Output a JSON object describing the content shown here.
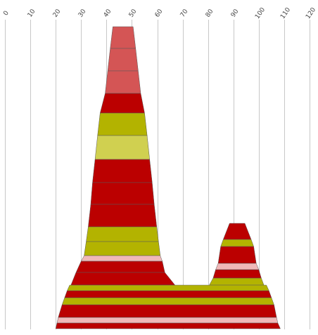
{
  "colors": {
    "red": "#bb0000",
    "red_light": "#d45555",
    "olive": "#b3b300",
    "olive_light": "#d0d050",
    "pink": "#f0b8b8",
    "grid": "#c8c8c8",
    "outline": "#5a5a5a"
  },
  "chart_data": {
    "type": "area",
    "title": "",
    "xlabel": "",
    "ylabel": "",
    "x_axis": {
      "position": "top",
      "min": 0,
      "max": 120,
      "ticks": [
        0,
        10,
        20,
        30,
        40,
        50,
        60,
        70,
        80,
        90,
        100,
        110,
        120
      ]
    },
    "y_axis": {
      "shown": false,
      "direction": "top-to-bottom"
    },
    "grid": "vertical",
    "description_in_data_units": "Stacked horizontal bands; each band spans from y_top to y_bottom (row index from top) with its horizontal extent left..right at top and bottom edges (x data units).",
    "bands": [
      {
        "y0": 0,
        "y1": 31,
        "l0": 42.5,
        "r0": 50.5,
        "l1": 41.5,
        "r1": 51.5,
        "color": "red_light"
      },
      {
        "y0": 31,
        "y1": 63,
        "l0": 41.5,
        "r0": 51.5,
        "l1": 40.5,
        "r1": 52.5,
        "color": "red_light"
      },
      {
        "y0": 63,
        "y1": 95,
        "l0": 40.5,
        "r0": 52.5,
        "l1": 39.5,
        "r1": 53.5,
        "color": "red_light"
      },
      {
        "y0": 95,
        "y1": 123,
        "l0": 39.5,
        "r0": 53.5,
        "l1": 37.5,
        "r1": 55,
        "color": "red"
      },
      {
        "y0": 123,
        "y1": 155,
        "l0": 37.5,
        "r0": 55,
        "l1": 36.5,
        "r1": 56,
        "color": "olive"
      },
      {
        "y0": 155,
        "y1": 189,
        "l0": 36.5,
        "r0": 56,
        "l1": 35.5,
        "r1": 57,
        "color": "olive_light"
      },
      {
        "y0": 189,
        "y1": 222,
        "l0": 35.5,
        "r0": 57,
        "l1": 34.5,
        "r1": 58,
        "color": "red"
      },
      {
        "y0": 222,
        "y1": 253,
        "l0": 34.5,
        "r0": 58,
        "l1": 33.8,
        "r1": 58.8,
        "color": "red"
      },
      {
        "y0": 253,
        "y1": 285,
        "l0": 33.8,
        "r0": 58.8,
        "l1": 32.8,
        "r1": 59.8,
        "color": "red"
      },
      {
        "y0": 285,
        "y1": 306,
        "l0": 32.8,
        "r0": 59.8,
        "l1": 32,
        "r1": 60.5,
        "color": "olive"
      },
      {
        "y0": 306,
        "y1": 326,
        "l0": 32,
        "r0": 60.5,
        "l1": 31.2,
        "r1": 61.2,
        "color": "olive"
      },
      {
        "y0": 326,
        "y1": 334,
        "l0": 31.2,
        "r0": 61.2,
        "l1": 30,
        "r1": 62,
        "color": "pink"
      },
      {
        "y0": 334,
        "y1": 350,
        "l0": 30,
        "r0": 62,
        "l1": 28,
        "r1": 63,
        "color": "red"
      },
      {
        "y0": 350,
        "y1": 368,
        "l0": 28,
        "r0": 63,
        "l1": 26,
        "r1": 67,
        "color": "red"
      },
      {
        "y0": 368,
        "y1": 376,
        "l0": 26,
        "r0": 67,
        "l1": 25.5,
        "r1": 68,
        "color": "olive"
      },
      {
        "y0": 280,
        "y1": 303,
        "l0": 88.5,
        "r0": 94.5,
        "l1": 86,
        "r1": 97,
        "color": "red"
      },
      {
        "y0": 303,
        "y1": 313,
        "l0": 86,
        "r0": 97,
        "l1": 85,
        "r1": 98,
        "color": "olive"
      },
      {
        "y0": 313,
        "y1": 337,
        "l0": 85,
        "r0": 98,
        "l1": 84,
        "r1": 99,
        "color": "red"
      },
      {
        "y0": 337,
        "y1": 346,
        "l0": 84,
        "r0": 99,
        "l1": 83,
        "r1": 100,
        "color": "pink"
      },
      {
        "y0": 346,
        "y1": 358,
        "l0": 83,
        "r0": 100,
        "l1": 82,
        "r1": 101,
        "color": "red"
      },
      {
        "y0": 358,
        "y1": 368,
        "l0": 82,
        "r0": 101,
        "l1": 80.5,
        "r1": 102,
        "color": "olive"
      },
      {
        "y0": 368,
        "y1": 376,
        "l0": 25.5,
        "r0": 103,
        "l1": 24.5,
        "r1": 104,
        "color": "olive"
      },
      {
        "y0": 376,
        "y1": 386,
        "l0": 24.5,
        "r0": 104,
        "l1": 23.5,
        "r1": 105,
        "color": "red"
      },
      {
        "y0": 386,
        "y1": 396,
        "l0": 23.5,
        "r0": 105,
        "l1": 22.5,
        "r1": 106,
        "color": "olive"
      },
      {
        "y0": 396,
        "y1": 414,
        "l0": 22.5,
        "r0": 106,
        "l1": 21,
        "r1": 107,
        "color": "red"
      },
      {
        "y0": 414,
        "y1": 422,
        "l0": 21,
        "r0": 107,
        "l1": 20.5,
        "r1": 107.5,
        "color": "pink"
      },
      {
        "y0": 422,
        "y1": 430,
        "l0": 20.5,
        "r0": 107.5,
        "l1": 20,
        "r1": 108.5,
        "color": "red"
      }
    ]
  }
}
